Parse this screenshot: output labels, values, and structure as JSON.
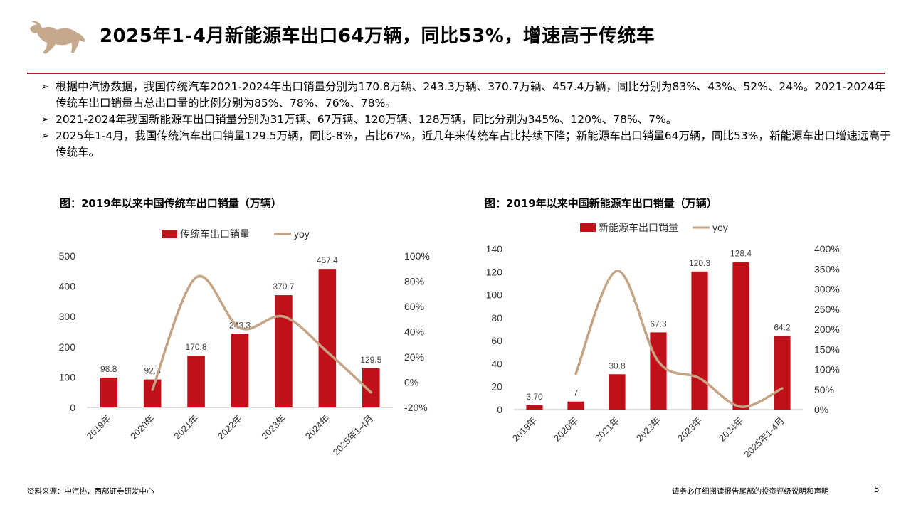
{
  "title": "2025年1-4月新能源车出口64万辆，同比53%，增速高于传统车",
  "bullets": [
    "根据中汽协数据，我国传统汽车2021-2024年出口销量分别为170.8万辆、243.3万辆、370.7万辆、457.4万辆，同比分别为83%、43%、52%、24%。2021-2024年传统车出口销量占总出口量的比例分别为85%、78%、76%、78%。",
    "2021-2024年我国新能源车出口销量分别为31万辆、67万辆、120万辆、128万辆，同比分别为345%、120%、78%、7%。",
    "2025年1-4月，我国传统汽车出口销量129.5万辆，同比-8%，占比67%，近几年来传统车占比持续下降；新能源车出口销量64万辆，同比53%，新能源车出口增速远高于传统车。"
  ],
  "footer": {
    "source": "资料来源：中汽协，西部证券研发中心",
    "disclaimer": "请务必仔细阅读报告尾部的投资评级说明和声明",
    "page": "5"
  },
  "colors": {
    "bar": "#c0101a",
    "line": "#c4a484",
    "rule": "#b01828"
  },
  "chart_data": [
    {
      "type": "bar",
      "title": "图：2019年以来中国传统车出口销量（万辆）",
      "categories": [
        "2019年",
        "2020年",
        "2021年",
        "2022年",
        "2023年",
        "2024年",
        "2025年1-4月"
      ],
      "series": [
        {
          "name": "传统车出口销量",
          "type": "bar",
          "axis": "left",
          "values": [
            98.8,
            92.5,
            170.8,
            243.3,
            370.7,
            457.4,
            129.5
          ],
          "labels": [
            "98.8",
            "92.5",
            "170.8",
            "243.3",
            "370.7",
            "457.4",
            "129.5"
          ]
        },
        {
          "name": "yoy",
          "type": "line",
          "axis": "right",
          "values": [
            null,
            -6,
            83,
            43,
            52,
            24,
            -8
          ]
        }
      ],
      "ylim": [
        0,
        500
      ],
      "yticks": [
        "0",
        "100",
        "200",
        "300",
        "400",
        "500"
      ],
      "y2lim": [
        -20,
        100
      ],
      "y2ticks": [
        "-20%",
        "0%",
        "20%",
        "40%",
        "60%",
        "80%",
        "100%"
      ],
      "legend": "top"
    },
    {
      "type": "bar",
      "title": "图：2019年以来中国新能源车出口销量（万辆）",
      "categories": [
        "2019年",
        "2020年",
        "2021年",
        "2022年",
        "2023年",
        "2024年",
        "2025年1-4月"
      ],
      "series": [
        {
          "name": "新能源车出口销量",
          "type": "bar",
          "axis": "left",
          "values": [
            3.7,
            7,
            30.8,
            67.3,
            120.3,
            128.4,
            64.2
          ],
          "labels": [
            "3.70",
            "7",
            "30.8",
            "67.3",
            "120.3",
            "128.4",
            "64.2"
          ]
        },
        {
          "name": "yoy",
          "type": "line",
          "axis": "right",
          "values": [
            null,
            89,
            345,
            120,
            78,
            7,
            53
          ]
        }
      ],
      "ylim": [
        0,
        140
      ],
      "yticks": [
        "0",
        "20",
        "40",
        "60",
        "80",
        "100",
        "120",
        "140"
      ],
      "y2lim": [
        0,
        400
      ],
      "y2ticks": [
        "0%",
        "50%",
        "100%",
        "150%",
        "200%",
        "250%",
        "300%",
        "350%",
        "400%"
      ],
      "legend": "top"
    }
  ]
}
